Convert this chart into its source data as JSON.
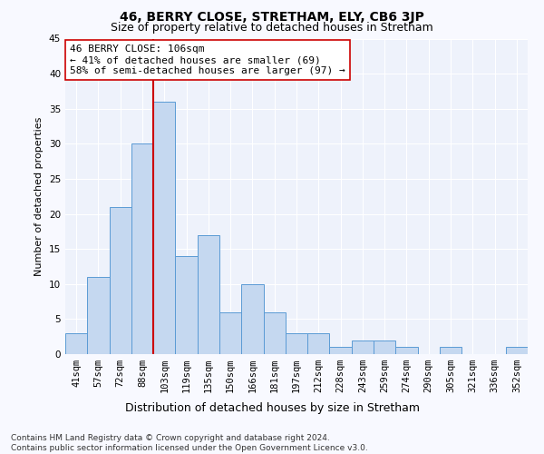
{
  "title": "46, BERRY CLOSE, STRETHAM, ELY, CB6 3JP",
  "subtitle": "Size of property relative to detached houses in Stretham",
  "xlabel": "Distribution of detached houses by size in Stretham",
  "ylabel": "Number of detached properties",
  "categories": [
    "41sqm",
    "57sqm",
    "72sqm",
    "88sqm",
    "103sqm",
    "119sqm",
    "135sqm",
    "150sqm",
    "166sqm",
    "181sqm",
    "197sqm",
    "212sqm",
    "228sqm",
    "243sqm",
    "259sqm",
    "274sqm",
    "290sqm",
    "305sqm",
    "321sqm",
    "336sqm",
    "352sqm"
  ],
  "values": [
    3,
    11,
    21,
    30,
    36,
    14,
    17,
    6,
    10,
    6,
    3,
    3,
    1,
    2,
    2,
    1,
    0,
    1,
    0,
    0,
    1
  ],
  "bar_color": "#c5d8f0",
  "bar_edge_color": "#5b9bd5",
  "vertical_line_color": "#cc0000",
  "annotation_text": "46 BERRY CLOSE: 106sqm\n← 41% of detached houses are smaller (69)\n58% of semi-detached houses are larger (97) →",
  "annotation_box_color": "#ffffff",
  "annotation_box_edge_color": "#cc0000",
  "ylim": [
    0,
    45
  ],
  "yticks": [
    0,
    5,
    10,
    15,
    20,
    25,
    30,
    35,
    40,
    45
  ],
  "footnote": "Contains HM Land Registry data © Crown copyright and database right 2024.\nContains public sector information licensed under the Open Government Licence v3.0.",
  "fig_facecolor": "#f8f9ff",
  "ax_facecolor": "#eef2fb",
  "grid_color": "#ffffff",
  "title_fontsize": 10,
  "subtitle_fontsize": 9,
  "xlabel_fontsize": 9,
  "ylabel_fontsize": 8,
  "tick_fontsize": 7.5,
  "annotation_fontsize": 8,
  "footnote_fontsize": 6.5,
  "vline_x_index": 3.5
}
